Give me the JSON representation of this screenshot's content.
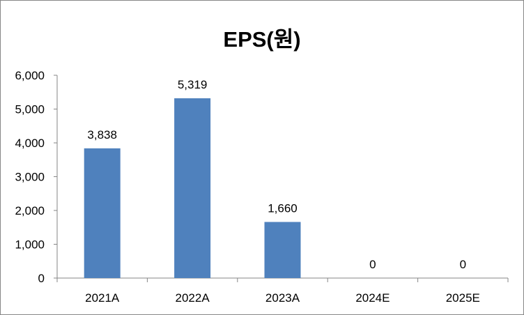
{
  "chart_data": {
    "type": "bar",
    "title": "EPS(원)",
    "categories": [
      "2021A",
      "2022A",
      "2023A",
      "2024E",
      "2025E"
    ],
    "values": [
      3838,
      5319,
      1660,
      0,
      0
    ],
    "data_labels": [
      "3,838",
      "5,319",
      "1,660",
      "0",
      "0"
    ],
    "yticks": [
      "0",
      "1,000",
      "2,000",
      "3,000",
      "4,000",
      "5,000",
      "6,000"
    ],
    "ylim": [
      0,
      6000
    ],
    "grid": false,
    "legend": "none",
    "bar_color": "#4F81BD"
  }
}
